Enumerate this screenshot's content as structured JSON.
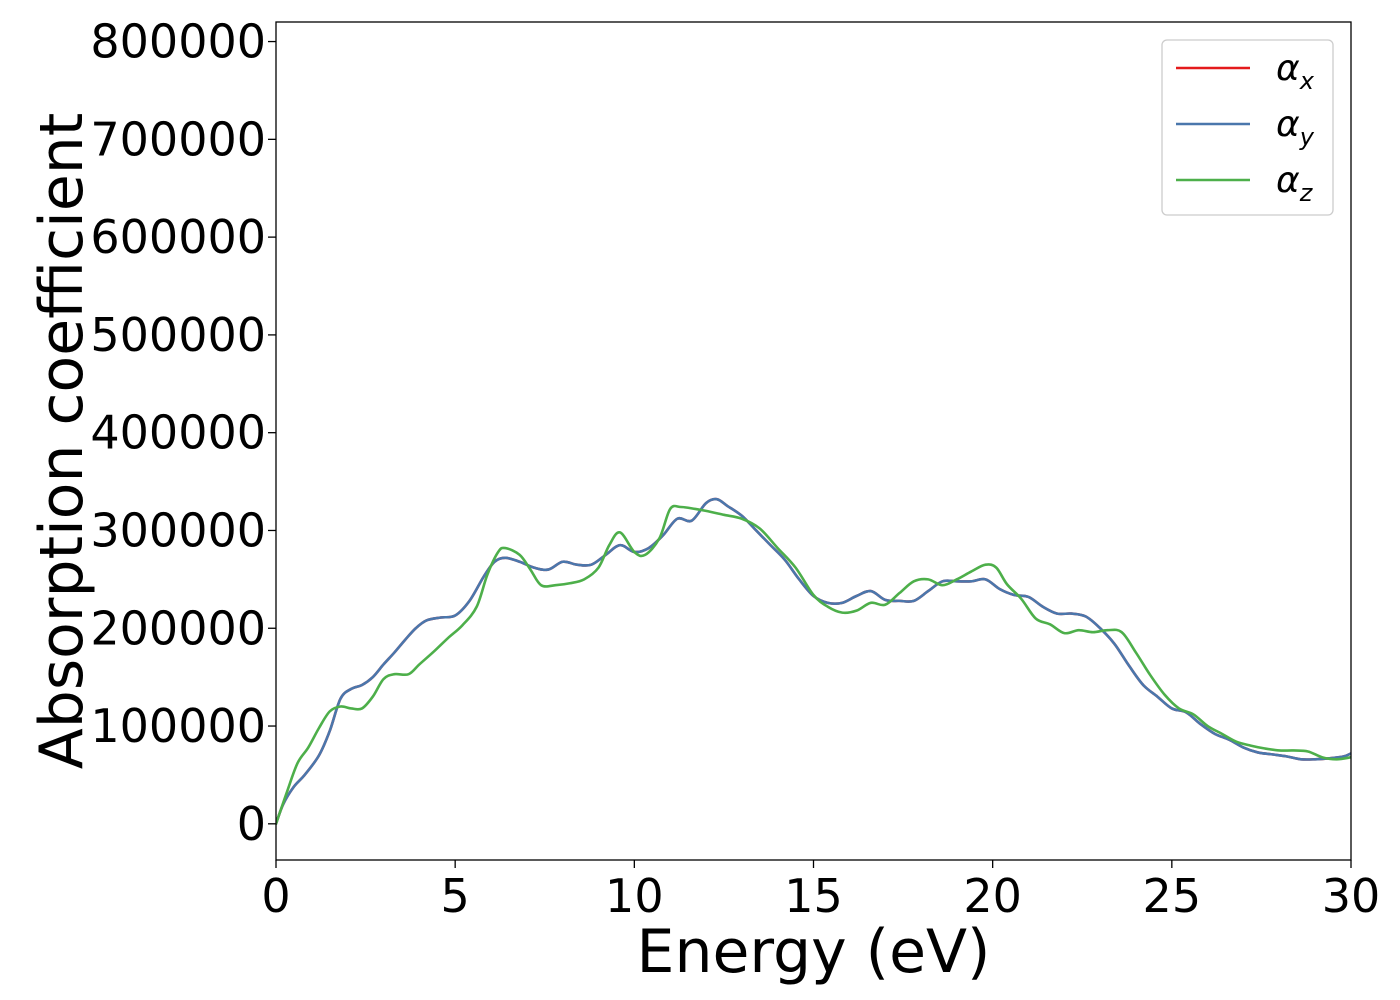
{
  "chart_data": {
    "type": "line",
    "title": "",
    "xlabel": "Energy (eV)",
    "ylabel": "Absorption coefficient",
    "xlim": [
      0,
      30
    ],
    "ylim": [
      -37000,
      820000
    ],
    "xticks": [
      0,
      5,
      10,
      15,
      20,
      25,
      30
    ],
    "xtick_labels": [
      "0",
      "5",
      "10",
      "15",
      "20",
      "25",
      "30"
    ],
    "yticks": [
      0,
      100000,
      200000,
      300000,
      400000,
      500000,
      600000,
      700000,
      800000
    ],
    "ytick_labels": [
      "0",
      "100000",
      "200000",
      "300000",
      "400000",
      "500000",
      "600000",
      "700000",
      "800000"
    ],
    "grid": false,
    "legend": {
      "placement": "top-right"
    },
    "series": [
      {
        "name": "α",
        "subscript": "x",
        "color": "#e41a1c",
        "x": [
          0,
          0.2,
          0.5,
          0.8,
          1.2,
          1.5,
          1.8,
          2.1,
          2.4,
          2.7,
          3,
          3.3,
          3.6,
          3.9,
          4.2,
          4.6,
          5,
          5.4,
          5.8,
          6.1,
          6.4,
          6.8,
          7.2,
          7.6,
          8,
          8.4,
          8.8,
          9.2,
          9.6,
          10,
          10.4,
          10.8,
          11.2,
          11.6,
          12,
          12.3,
          12.6,
          13,
          13.4,
          13.8,
          14.2,
          14.6,
          15,
          15.4,
          15.8,
          16.2,
          16.6,
          17,
          17.4,
          17.8,
          18.2,
          18.6,
          19,
          19.4,
          19.8,
          20.2,
          20.6,
          21,
          21.4,
          21.8,
          22.2,
          22.6,
          23,
          23.4,
          23.8,
          24.2,
          24.6,
          25,
          25.4,
          25.8,
          26.2,
          26.6,
          27,
          27.4,
          27.8,
          28.2,
          28.6,
          29,
          29.4,
          29.8,
          30
        ],
        "y": [
          0,
          20000,
          38000,
          50000,
          70000,
          95000,
          128000,
          138000,
          142000,
          150000,
          163000,
          175000,
          188000,
          200000,
          208000,
          211000,
          213000,
          228000,
          253000,
          268000,
          272000,
          268000,
          262000,
          260000,
          268000,
          265000,
          265000,
          275000,
          285000,
          278000,
          282000,
          295000,
          312000,
          310000,
          328000,
          332000,
          325000,
          315000,
          300000,
          285000,
          270000,
          250000,
          233000,
          226000,
          226000,
          233000,
          238000,
          229000,
          228000,
          228000,
          238000,
          248000,
          248000,
          248000,
          250000,
          240000,
          234000,
          232000,
          222000,
          215000,
          215000,
          212000,
          200000,
          184000,
          162000,
          142000,
          130000,
          118000,
          114000,
          102000,
          92000,
          86000,
          78000,
          73000,
          71000,
          69000,
          66000,
          66000,
          67000,
          69000,
          72000
        ]
      },
      {
        "name": "α",
        "subscript": "y",
        "color": "#4a77ac",
        "x": [
          0,
          0.2,
          0.5,
          0.8,
          1.2,
          1.5,
          1.8,
          2.1,
          2.4,
          2.7,
          3,
          3.3,
          3.6,
          3.9,
          4.2,
          4.6,
          5,
          5.4,
          5.8,
          6.1,
          6.4,
          6.8,
          7.2,
          7.6,
          8,
          8.4,
          8.8,
          9.2,
          9.6,
          10,
          10.4,
          10.8,
          11.2,
          11.6,
          12,
          12.3,
          12.6,
          13,
          13.4,
          13.8,
          14.2,
          14.6,
          15,
          15.4,
          15.8,
          16.2,
          16.6,
          17,
          17.4,
          17.8,
          18.2,
          18.6,
          19,
          19.4,
          19.8,
          20.2,
          20.6,
          21,
          21.4,
          21.8,
          22.2,
          22.6,
          23,
          23.4,
          23.8,
          24.2,
          24.6,
          25,
          25.4,
          25.8,
          26.2,
          26.6,
          27,
          27.4,
          27.8,
          28.2,
          28.6,
          29,
          29.4,
          29.8,
          30
        ],
        "y": [
          0,
          20000,
          38000,
          50000,
          70000,
          95000,
          128000,
          138000,
          142000,
          150000,
          163000,
          175000,
          188000,
          200000,
          208000,
          211000,
          213000,
          228000,
          253000,
          268000,
          272000,
          268000,
          262000,
          260000,
          268000,
          265000,
          265000,
          275000,
          285000,
          278000,
          282000,
          295000,
          312000,
          310000,
          328000,
          332000,
          325000,
          315000,
          300000,
          285000,
          270000,
          250000,
          233000,
          226000,
          226000,
          233000,
          238000,
          229000,
          228000,
          228000,
          238000,
          248000,
          248000,
          248000,
          250000,
          240000,
          234000,
          232000,
          222000,
          215000,
          215000,
          212000,
          200000,
          184000,
          162000,
          142000,
          130000,
          118000,
          114000,
          102000,
          92000,
          86000,
          78000,
          73000,
          71000,
          69000,
          66000,
          66000,
          67000,
          69000,
          72000
        ]
      },
      {
        "name": "α",
        "subscript": "z",
        "color": "#4daf4a",
        "x": [
          0,
          0.3,
          0.6,
          0.9,
          1.2,
          1.5,
          1.8,
          2.1,
          2.4,
          2.7,
          3,
          3.3,
          3.7,
          4,
          4.4,
          4.8,
          5.2,
          5.6,
          5.9,
          6.2,
          6.4,
          6.8,
          7.1,
          7.4,
          7.8,
          8.2,
          8.6,
          9,
          9.3,
          9.6,
          10,
          10.3,
          10.7,
          11,
          11.3,
          11.7,
          12,
          12.5,
          13,
          13.5,
          14,
          14.5,
          15,
          15.4,
          15.8,
          16.2,
          16.6,
          17,
          17.4,
          17.8,
          18.2,
          18.6,
          19,
          19.4,
          19.8,
          20.1,
          20.4,
          20.8,
          21.2,
          21.6,
          22,
          22.4,
          22.8,
          23.2,
          23.6,
          24,
          24.4,
          24.8,
          25.2,
          25.6,
          26,
          26.4,
          26.8,
          27.2,
          27.6,
          28,
          28.4,
          28.8,
          29.2,
          29.6,
          30
        ],
        "y": [
          0,
          32000,
          62000,
          78000,
          98000,
          115000,
          120000,
          118000,
          118000,
          130000,
          148000,
          153000,
          153000,
          163000,
          176000,
          190000,
          203000,
          222000,
          255000,
          278000,
          282000,
          275000,
          260000,
          244000,
          244000,
          246000,
          250000,
          262000,
          285000,
          298000,
          278000,
          275000,
          292000,
          322000,
          324000,
          322000,
          320000,
          316000,
          312000,
          302000,
          282000,
          262000,
          234000,
          222000,
          216000,
          218000,
          226000,
          224000,
          236000,
          248000,
          250000,
          244000,
          250000,
          258000,
          265000,
          262000,
          245000,
          230000,
          210000,
          204000,
          195000,
          198000,
          196000,
          198000,
          196000,
          175000,
          152000,
          132000,
          118000,
          112000,
          100000,
          92000,
          84000,
          80000,
          77000,
          75000,
          75000,
          74000,
          68000,
          66000,
          68000
        ]
      }
    ]
  }
}
